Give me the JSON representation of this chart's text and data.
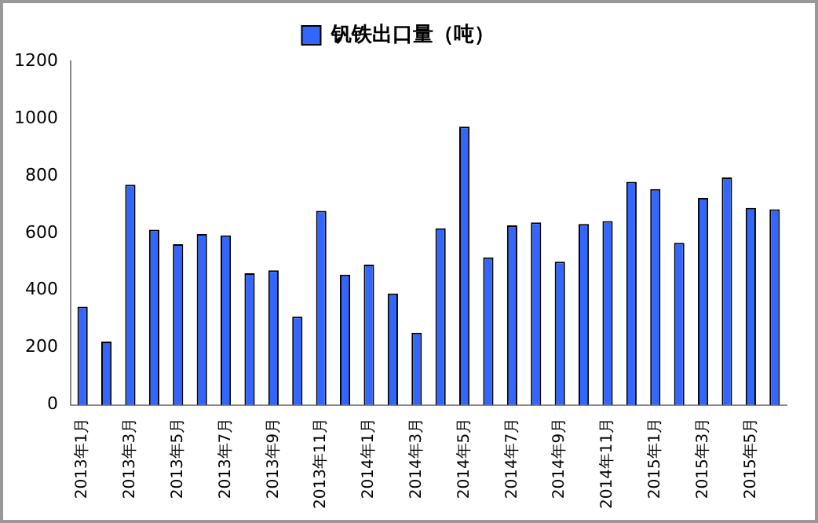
{
  "chart_data": {
    "type": "bar",
    "categories": [
      "2013年1月",
      null,
      "2013年3月",
      null,
      "2013年5月",
      null,
      "2013年7月",
      null,
      "2013年9月",
      null,
      "2013年11月",
      null,
      "2014年1月",
      null,
      "2014年3月",
      null,
      "2014年5月",
      null,
      "2014年7月",
      null,
      "2014年9月",
      null,
      "2014年11月",
      null,
      "2015年1月",
      null,
      "2015年3月",
      null,
      "2015年5月",
      null
    ],
    "series": [
      {
        "name": "钒铁出口量（吨）",
        "color": "#3366ff",
        "values": [
          343,
          221,
          769,
          612,
          561,
          597,
          592,
          460,
          470,
          308,
          678,
          455,
          490,
          389,
          252,
          617,
          972,
          515,
          627,
          637,
          500,
          632,
          642,
          779,
          754,
          566,
          723,
          794,
          688,
          683
        ]
      }
    ],
    "ylim": [
      0,
      1200
    ],
    "yticks": [
      0,
      200,
      400,
      600,
      800,
      1000,
      1200
    ],
    "grid": false,
    "legend": "top"
  }
}
